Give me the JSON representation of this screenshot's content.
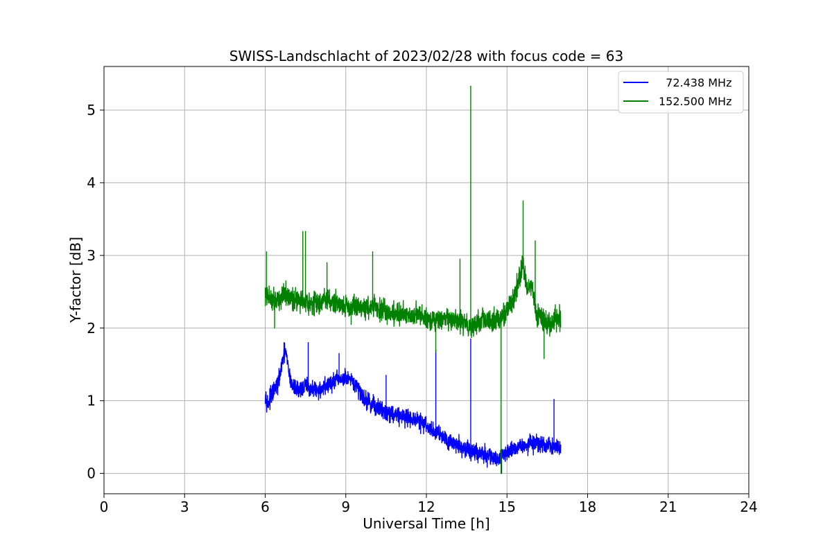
{
  "chart_data": {
    "type": "line",
    "title": "SWISS-Landschlacht of 2023/02/28 with focus code = 63",
    "xlabel": "Universal Time [h]",
    "ylabel": "Y-factor [dB]",
    "xlim": [
      0,
      24
    ],
    "ylim": [
      -0.28,
      5.6
    ],
    "xticks": [
      0,
      3,
      6,
      9,
      12,
      15,
      18,
      21,
      24
    ],
    "yticks": [
      0,
      1,
      2,
      3,
      4,
      5
    ],
    "grid": true,
    "legend_position": "top-right",
    "series": [
      {
        "name": "  72.438 MHz",
        "color": "#0000ff",
        "x": [
          6.0,
          6.1,
          6.2,
          6.35,
          6.5,
          6.65,
          6.75,
          6.9,
          7.0,
          7.25,
          7.5,
          7.75,
          8.0,
          8.25,
          8.5,
          8.75,
          9.0,
          9.25,
          9.5,
          9.75,
          10.0,
          10.25,
          10.5,
          10.75,
          11.0,
          11.25,
          11.5,
          11.75,
          12.0,
          12.25,
          12.5,
          12.75,
          13.0,
          13.25,
          13.5,
          13.75,
          14.0,
          14.25,
          14.5,
          14.75,
          15.0,
          15.25,
          15.5,
          15.75,
          16.0,
          16.25,
          16.5,
          16.75,
          17.0
        ],
        "values": [
          1.1,
          0.95,
          1.05,
          1.15,
          1.25,
          1.55,
          1.7,
          1.35,
          1.2,
          1.15,
          1.2,
          1.15,
          1.15,
          1.2,
          1.25,
          1.3,
          1.3,
          1.25,
          1.15,
          1.0,
          0.95,
          0.9,
          0.85,
          0.82,
          0.8,
          0.78,
          0.75,
          0.72,
          0.65,
          0.58,
          0.55,
          0.48,
          0.42,
          0.38,
          0.32,
          0.3,
          0.27,
          0.25,
          0.22,
          0.2,
          0.3,
          0.35,
          0.38,
          0.4,
          0.42,
          0.4,
          0.38,
          0.36,
          0.35
        ],
        "noise": 0.12,
        "spikes": [
          {
            "x": 6.7,
            "y": 1.8
          },
          {
            "x": 7.6,
            "y": 1.8
          },
          {
            "x": 8.75,
            "y": 1.65
          },
          {
            "x": 10.5,
            "y": 1.35
          },
          {
            "x": 12.35,
            "y": 1.7
          },
          {
            "x": 13.65,
            "y": 1.85
          },
          {
            "x": 14.8,
            "y": 0.0
          },
          {
            "x": 16.75,
            "y": 1.02
          }
        ]
      },
      {
        "name": "152.500 MHz",
        "color": "#008000",
        "x": [
          6.0,
          6.25,
          6.5,
          6.75,
          7.0,
          7.25,
          7.5,
          7.75,
          8.0,
          8.25,
          8.5,
          8.75,
          9.0,
          9.25,
          9.5,
          9.75,
          10.0,
          10.25,
          10.5,
          10.75,
          11.0,
          11.25,
          11.5,
          11.75,
          12.0,
          12.25,
          12.5,
          12.75,
          13.0,
          13.25,
          13.5,
          13.75,
          14.0,
          14.25,
          14.5,
          14.75,
          15.0,
          15.25,
          15.4,
          15.5,
          15.6,
          15.75,
          15.9,
          16.0,
          16.1,
          16.25,
          16.5,
          16.75,
          17.0
        ],
        "values": [
          2.45,
          2.4,
          2.4,
          2.45,
          2.4,
          2.4,
          2.38,
          2.35,
          2.35,
          2.4,
          2.35,
          2.35,
          2.3,
          2.3,
          2.3,
          2.28,
          2.3,
          2.25,
          2.22,
          2.2,
          2.2,
          2.2,
          2.18,
          2.17,
          2.15,
          2.1,
          2.1,
          2.12,
          2.1,
          2.08,
          2.05,
          2.05,
          2.1,
          2.08,
          2.1,
          2.15,
          2.25,
          2.4,
          2.6,
          2.75,
          2.9,
          2.5,
          2.6,
          2.45,
          2.2,
          2.15,
          2.05,
          2.1,
          2.15
        ],
        "noise": 0.15,
        "spikes": [
          {
            "x": 6.05,
            "y": 3.05
          },
          {
            "x": 6.35,
            "y": 2.0
          },
          {
            "x": 7.4,
            "y": 3.33
          },
          {
            "x": 7.5,
            "y": 3.33
          },
          {
            "x": 8.3,
            "y": 2.9
          },
          {
            "x": 9.2,
            "y": 2.05
          },
          {
            "x": 10.0,
            "y": 3.05
          },
          {
            "x": 12.35,
            "y": 1.67
          },
          {
            "x": 13.25,
            "y": 2.95
          },
          {
            "x": 13.65,
            "y": 5.33
          },
          {
            "x": 14.78,
            "y": 0.0
          },
          {
            "x": 15.6,
            "y": 3.75
          },
          {
            "x": 16.05,
            "y": 3.2
          },
          {
            "x": 16.38,
            "y": 1.58
          }
        ]
      }
    ]
  }
}
